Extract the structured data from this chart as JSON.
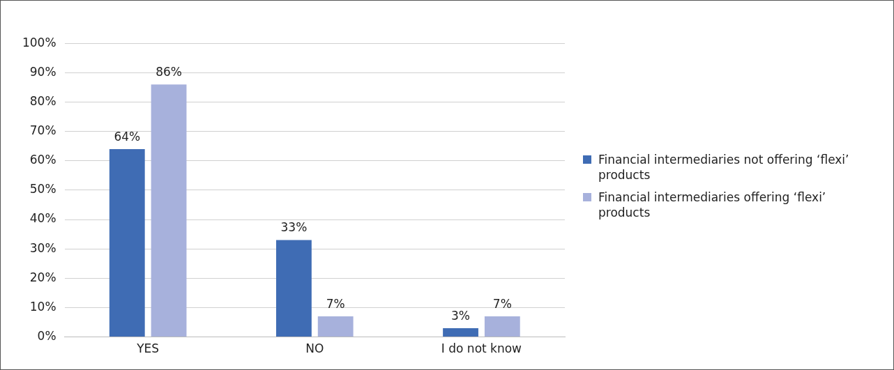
{
  "chart_data": {
    "type": "bar",
    "categories": [
      "YES",
      "NO",
      "I do not know"
    ],
    "series": [
      {
        "name": "Financial intermediaries not offering ‘flexi’ products",
        "color": "#3f6cb4",
        "values": [
          64,
          33,
          3
        ],
        "value_labels": [
          "64%",
          "33%",
          "3%"
        ]
      },
      {
        "name": "Financial intermediaries offering ‘flexi’ products",
        "color": "#a7b1dc",
        "values": [
          86,
          7,
          7
        ],
        "value_labels": [
          "86%",
          "7%",
          "7%"
        ]
      }
    ],
    "ylim": [
      0,
      100
    ],
    "yticks": [
      {
        "value": 0,
        "label": "0%"
      },
      {
        "value": 10,
        "label": "10%"
      },
      {
        "value": 20,
        "label": "20%"
      },
      {
        "value": 30,
        "label": "30%"
      },
      {
        "value": 40,
        "label": "40%"
      },
      {
        "value": 50,
        "label": "50%"
      },
      {
        "value": 60,
        "label": "60%"
      },
      {
        "value": 70,
        "label": "70%"
      },
      {
        "value": 80,
        "label": "80%"
      },
      {
        "value": 90,
        "label": "90%"
      },
      {
        "value": 100,
        "label": "100%"
      }
    ],
    "grid": "y",
    "legend": "right"
  }
}
